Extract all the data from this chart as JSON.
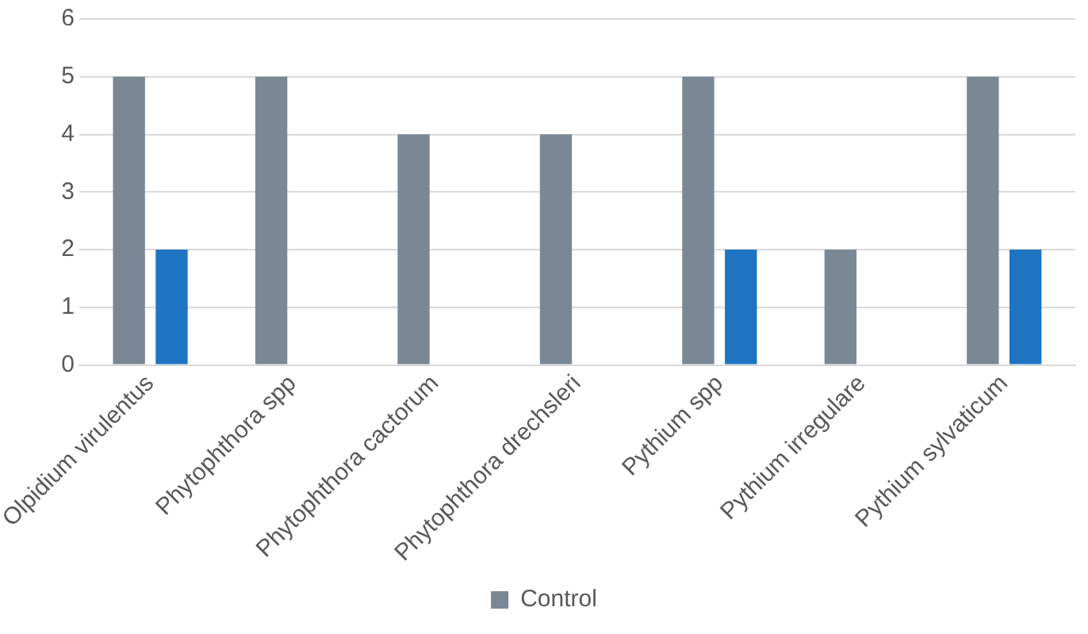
{
  "chart_data": {
    "type": "bar",
    "categories": [
      "Olpidium virulentus",
      "Phytophthora spp",
      "Phytophthora cactorum",
      "Phytophthora drechsleri",
      "Pythium spp",
      "Pythium irregulare",
      "Pythium sylvaticum"
    ],
    "series": [
      {
        "name": "Control",
        "color": "#7a8896",
        "values": [
          5,
          5,
          4,
          4,
          5,
          2,
          5
        ]
      },
      {
        "color": "#1f74c1",
        "values": [
          2,
          0,
          0,
          0,
          2,
          0,
          2
        ]
      }
    ],
    "ylim": [
      0,
      6
    ],
    "yticks": [
      0,
      1,
      2,
      3,
      4,
      5,
      6
    ],
    "grid": "y",
    "legend": "bottom"
  }
}
